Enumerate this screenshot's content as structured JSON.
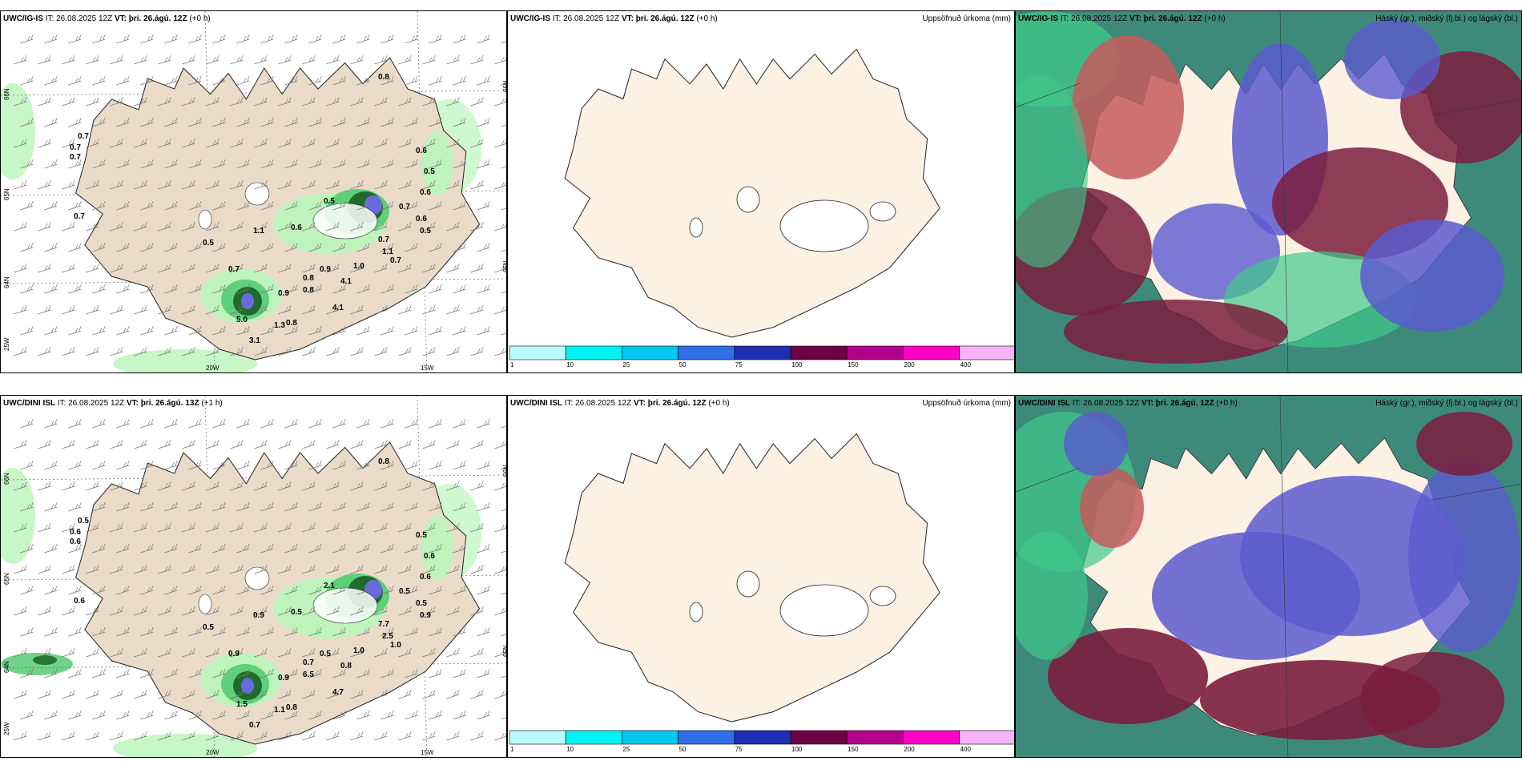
{
  "rows": [
    {
      "panels": [
        {
          "model": "UWC/IG-IS",
          "it_label": "IT:",
          "it": "26.08.2025 12Z",
          "vt_label": "VT:",
          "vt": "þri. 26.ágú. 12Z",
          "lead": "(+0 h)",
          "right_label": "",
          "labels": [
            "0.8",
            "0.7",
            "0.7",
            "0.7",
            "0.7",
            "0.5",
            "0.6",
            "0.5",
            "0.6",
            "0.7",
            "0.6",
            "0.5",
            "0.5",
            "1.1",
            "0.7",
            "0.8",
            "0.9",
            "4.1",
            "1.0",
            "0.9",
            "0.8",
            "5.0",
            "1.3",
            "0.8",
            "3.1",
            "4.1",
            "0.7",
            "1.1",
            "0.7",
            "0.6"
          ],
          "ticks": [
            "66N",
            "65N",
            "64N",
            "25W",
            "20W",
            "15W",
            "66N",
            "65N"
          ]
        },
        {
          "model": "UWC/IG-IS",
          "it_label": "IT:",
          "it": "26.08.2025 12Z",
          "vt_label": "VT:",
          "vt": "þri. 26.ágú. 12Z",
          "lead": "(+0 h)",
          "right_label": "Uppsöfnuð úrkoma (mm)",
          "colorbar": [
            "1",
            "10",
            "25",
            "50",
            "75",
            "100",
            "150",
            "200",
            "400"
          ]
        },
        {
          "model": "UWC/IG-IS",
          "it_label": "IT:",
          "it": "26.08.2025 12Z",
          "vt_label": "VT:",
          "vt": "þri. 26.ágú. 12Z",
          "lead": "(+0 h)",
          "right_label": "Háský (gr.), miðský (fj.bl.) og lágský (bl.)"
        }
      ]
    },
    {
      "panels": [
        {
          "model": "UWC/DINI ISL",
          "it_label": "IT:",
          "it": "26.08.2025 12Z",
          "vt_label": "VT:",
          "vt": "þri. 26.ágú. 13Z",
          "lead": "(+1 h)",
          "right_label": "",
          "labels": [
            "0.8",
            "0.5",
            "0.6",
            "0.6",
            "0.6",
            "0.5",
            "0.5",
            "0.6",
            "0.6",
            "0.5",
            "0.5",
            "0.9",
            "2.1",
            "0.9",
            "0.9",
            "0.7",
            "0.9",
            "0.8",
            "1.0",
            "0.5",
            "6.5",
            "1.5",
            "1.1",
            "0.8",
            "0.7",
            "4.7",
            "7.7",
            "2.5",
            "1.0",
            "0.5"
          ],
          "ticks": [
            "66N",
            "65N",
            "64N",
            "25W",
            "20W",
            "15W",
            "66N",
            "65N"
          ]
        },
        {
          "model": "UWC/DINI ISL",
          "it_label": "IT:",
          "it": "26.08.2025 12Z",
          "vt_label": "VT:",
          "vt": "þri. 26.ágú. 12Z",
          "lead": "(+0 h)",
          "right_label": "Uppsöfnuð úrkoma (mm)",
          "colorbar": [
            "1",
            "10",
            "25",
            "50",
            "75",
            "100",
            "150",
            "200",
            "400"
          ]
        },
        {
          "model": "UWC/DINI ISL",
          "it_label": "IT:",
          "it": "26.08.2025 12Z",
          "vt_label": "VT:",
          "vt": "þri. 26.ágú. 12Z",
          "lead": "(+0 h)",
          "right_label": "Háský (gr.), miðský (fj.bl.) og lágský (bl.)"
        }
      ]
    }
  ],
  "colors": {
    "land_tan": "#eadbc9",
    "land_cream": "#fdf1e4",
    "precip_light": "#b9f5b9",
    "precip_mid": "#5fcf7a",
    "precip_dark": "#1e6b2c",
    "precip_blue": "#6a6ae0",
    "cloud_high": "#40c98a",
    "cloud_mid": "#c45c5c",
    "cloud_low": "#5b5bcf",
    "cloud_dark": "#7a1d3d",
    "colorbar": [
      "#b9fbfb",
      "#00f2f2",
      "#00c8f0",
      "#2f6fe8",
      "#1f2fb4",
      "#6e0046",
      "#b4008c",
      "#ff00c8",
      "#f5b4f5"
    ]
  }
}
